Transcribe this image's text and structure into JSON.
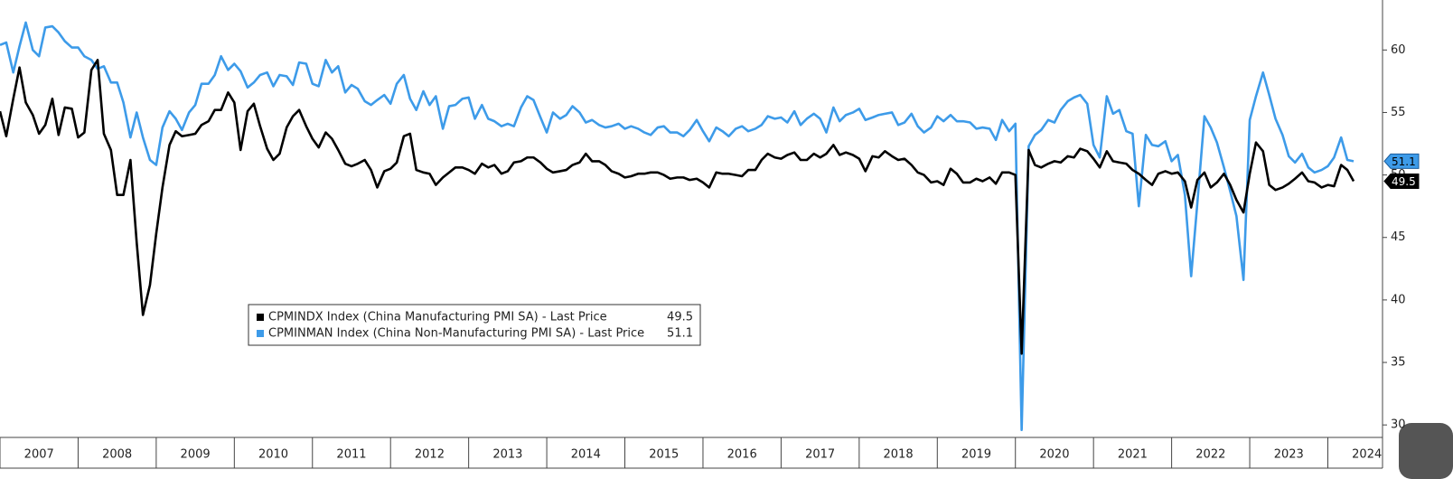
{
  "chart_data": {
    "type": "line",
    "x": [
      2007.0,
      2007.08,
      2007.17,
      2007.25,
      2007.33,
      2007.42,
      2007.5,
      2007.58,
      2007.67,
      2007.75,
      2007.83,
      2007.92,
      2008.0,
      2008.08,
      2008.17,
      2008.25,
      2008.33,
      2008.42,
      2008.5,
      2008.58,
      2008.67,
      2008.75,
      2008.83,
      2008.92,
      2009.0,
      2009.08,
      2009.17,
      2009.25,
      2009.33,
      2009.42,
      2009.5,
      2009.58,
      2009.67,
      2009.75,
      2009.83,
      2009.92,
      2010.0,
      2010.08,
      2010.17,
      2010.25,
      2010.33,
      2010.42,
      2010.5,
      2010.58,
      2010.67,
      2010.75,
      2010.83,
      2010.92,
      2011.0,
      2011.08,
      2011.17,
      2011.25,
      2011.33,
      2011.42,
      2011.5,
      2011.58,
      2011.67,
      2011.75,
      2011.83,
      2011.92,
      2012.0,
      2012.08,
      2012.17,
      2012.25,
      2012.33,
      2012.42,
      2012.5,
      2012.58,
      2012.67,
      2012.75,
      2012.83,
      2012.92,
      2013.0,
      2013.08,
      2013.17,
      2013.25,
      2013.33,
      2013.42,
      2013.5,
      2013.58,
      2013.67,
      2013.75,
      2013.83,
      2013.92,
      2014.0,
      2014.08,
      2014.17,
      2014.25,
      2014.33,
      2014.42,
      2014.5,
      2014.58,
      2014.67,
      2014.75,
      2014.83,
      2014.92,
      2015.0,
      2015.08,
      2015.17,
      2015.25,
      2015.33,
      2015.42,
      2015.5,
      2015.58,
      2015.67,
      2015.75,
      2015.83,
      2015.92,
      2016.0,
      2016.08,
      2016.17,
      2016.25,
      2016.33,
      2016.42,
      2016.5,
      2016.58,
      2016.67,
      2016.75,
      2016.83,
      2016.92,
      2017.0,
      2017.08,
      2017.17,
      2017.25,
      2017.33,
      2017.42,
      2017.5,
      2017.58,
      2017.67,
      2017.75,
      2017.83,
      2017.92,
      2018.0,
      2018.08,
      2018.17,
      2018.25,
      2018.33,
      2018.42,
      2018.5,
      2018.58,
      2018.67,
      2018.75,
      2018.83,
      2018.92,
      2019.0,
      2019.08,
      2019.17,
      2019.25,
      2019.33,
      2019.42,
      2019.5,
      2019.58,
      2019.67,
      2019.75,
      2019.83,
      2019.92,
      2020.0,
      2020.08,
      2020.17,
      2020.25,
      2020.33,
      2020.42,
      2020.5,
      2020.58,
      2020.67,
      2020.75,
      2020.83,
      2020.92,
      2021.0,
      2021.08,
      2021.17,
      2021.25,
      2021.33,
      2021.42,
      2021.5,
      2021.58,
      2021.67,
      2021.75,
      2021.83,
      2021.92,
      2022.0,
      2022.08,
      2022.17,
      2022.25,
      2022.33,
      2022.42,
      2022.5,
      2022.58,
      2022.67,
      2022.75,
      2022.83,
      2022.92,
      2023.0,
      2023.08,
      2023.17,
      2023.25,
      2023.33,
      2023.42,
      2023.5,
      2023.58,
      2023.67,
      2023.75,
      2023.83,
      2023.92,
      2024.0,
      2024.08,
      2024.17,
      2024.25,
      2024.33
    ],
    "series": [
      {
        "name": "CPMINDX Index (China Manufacturing PMI SA) - Last Price",
        "color": "#000000",
        "values": [
          55.1,
          53.1,
          56.1,
          58.6,
          55.8,
          54.8,
          53.3,
          54.0,
          56.1,
          53.2,
          55.4,
          55.3,
          53.0,
          53.4,
          58.4,
          59.2,
          53.3,
          52.0,
          48.4,
          48.4,
          51.2,
          44.6,
          38.8,
          41.2,
          45.3,
          49.0,
          52.4,
          53.5,
          53.1,
          53.2,
          53.3,
          54.0,
          54.3,
          55.2,
          55.2,
          56.6,
          55.8,
          52.0,
          55.1,
          55.7,
          53.9,
          52.1,
          51.2,
          51.7,
          53.8,
          54.7,
          55.2,
          53.9,
          52.9,
          52.2,
          53.4,
          52.9,
          52.0,
          50.9,
          50.7,
          50.9,
          51.2,
          50.4,
          49.0,
          50.3,
          50.5,
          51.0,
          53.1,
          53.3,
          50.4,
          50.2,
          50.1,
          49.2,
          49.8,
          50.2,
          50.6,
          50.6,
          50.4,
          50.1,
          50.9,
          50.6,
          50.8,
          50.1,
          50.3,
          51.0,
          51.1,
          51.4,
          51.4,
          51.0,
          50.5,
          50.2,
          50.3,
          50.4,
          50.8,
          51.0,
          51.7,
          51.1,
          51.1,
          50.8,
          50.3,
          50.1,
          49.8,
          49.9,
          50.1,
          50.1,
          50.2,
          50.2,
          50.0,
          49.7,
          49.8,
          49.8,
          49.6,
          49.7,
          49.4,
          49.0,
          50.2,
          50.1,
          50.1,
          50.0,
          49.9,
          50.4,
          50.4,
          51.2,
          51.7,
          51.4,
          51.3,
          51.6,
          51.8,
          51.2,
          51.2,
          51.7,
          51.4,
          51.7,
          52.4,
          51.6,
          51.8,
          51.6,
          51.3,
          50.3,
          51.5,
          51.4,
          51.9,
          51.5,
          51.2,
          51.3,
          50.8,
          50.2,
          50.0,
          49.4,
          49.5,
          49.2,
          50.5,
          50.1,
          49.4,
          49.4,
          49.7,
          49.5,
          49.8,
          49.3,
          50.2,
          50.2,
          50.0,
          35.7,
          52.0,
          50.8,
          50.6,
          50.9,
          51.1,
          51.0,
          51.5,
          51.4,
          52.1,
          51.9,
          51.3,
          50.6,
          51.9,
          51.1,
          51.0,
          50.9,
          50.4,
          50.1,
          49.6,
          49.2,
          50.1,
          50.3,
          50.1,
          50.2,
          49.5,
          47.4,
          49.6,
          50.2,
          49.0,
          49.4,
          50.1,
          49.2,
          48.0,
          47.0,
          50.1,
          52.6,
          51.9,
          49.2,
          48.8,
          49.0,
          49.3,
          49.7,
          50.2,
          49.5,
          49.4,
          49.0,
          49.2,
          49.1,
          50.8,
          50.4,
          49.5
        ]
      },
      {
        "name": "CPMINMAN Index (China Non-Manufacturing PMI SA) - Last Price",
        "color": "#3d9be9",
        "values": [
          60.4,
          60.6,
          58.2,
          60.3,
          62.2,
          60.0,
          59.5,
          61.8,
          61.9,
          61.4,
          60.7,
          60.2,
          60.2,
          59.5,
          59.2,
          58.5,
          58.7,
          57.4,
          57.4,
          55.8,
          53.0,
          55.0,
          53.0,
          51.2,
          50.8,
          53.8,
          55.1,
          54.5,
          53.6,
          55.0,
          55.6,
          57.3,
          57.3,
          58.0,
          59.5,
          58.4,
          58.9,
          58.3,
          57.0,
          57.4,
          58.0,
          58.2,
          57.1,
          58.0,
          57.9,
          57.2,
          59.0,
          58.9,
          57.3,
          57.1,
          59.2,
          58.2,
          58.7,
          56.6,
          57.2,
          56.9,
          55.9,
          55.6,
          56.0,
          56.4,
          55.7,
          57.3,
          58.0,
          56.1,
          55.2,
          56.7,
          55.6,
          56.3,
          53.7,
          55.5,
          55.6,
          56.1,
          56.2,
          54.5,
          55.6,
          54.5,
          54.3,
          53.9,
          54.1,
          53.9,
          55.4,
          56.3,
          56.0,
          54.6,
          53.4,
          55.0,
          54.5,
          54.8,
          55.5,
          55.0,
          54.2,
          54.4,
          54.0,
          53.8,
          53.9,
          54.1,
          53.7,
          53.9,
          53.7,
          53.4,
          53.2,
          53.8,
          53.9,
          53.4,
          53.4,
          53.1,
          53.6,
          54.4,
          53.5,
          52.7,
          53.8,
          53.5,
          53.1,
          53.7,
          53.9,
          53.5,
          53.7,
          54.0,
          54.7,
          54.5,
          54.6,
          54.2,
          55.1,
          54.0,
          54.5,
          54.9,
          54.5,
          53.4,
          55.4,
          54.3,
          54.8,
          55.0,
          55.3,
          54.4,
          54.6,
          54.8,
          54.9,
          55.0,
          54.0,
          54.2,
          54.9,
          53.9,
          53.4,
          53.8,
          54.7,
          54.3,
          54.8,
          54.3,
          54.3,
          54.2,
          53.7,
          53.8,
          53.7,
          52.8,
          54.4,
          53.5,
          54.1,
          29.6,
          52.3,
          53.2,
          53.6,
          54.4,
          54.2,
          55.2,
          55.9,
          56.2,
          56.4,
          55.7,
          52.4,
          51.4,
          56.3,
          54.9,
          55.2,
          53.5,
          53.3,
          47.5,
          53.2,
          52.4,
          52.3,
          52.7,
          51.1,
          51.6,
          48.4,
          41.9,
          47.8,
          54.7,
          53.8,
          52.6,
          50.6,
          48.7,
          46.7,
          41.6,
          54.4,
          56.3,
          58.2,
          56.4,
          54.5,
          53.2,
          51.5,
          51.0,
          51.7,
          50.6,
          50.2,
          50.4,
          50.7,
          51.4,
          53.0,
          51.2,
          51.1
        ]
      }
    ],
    "xlim": [
      2007,
      2024.7
    ],
    "xticks": [
      2007,
      2008,
      2009,
      2010,
      2011,
      2012,
      2013,
      2014,
      2015,
      2016,
      2017,
      2018,
      2019,
      2020,
      2021,
      2022,
      2023,
      2024
    ],
    "ylim": [
      29,
      64
    ],
    "yticks": [
      30,
      35,
      40,
      45,
      50,
      55,
      60
    ],
    "grid": false
  }
}
